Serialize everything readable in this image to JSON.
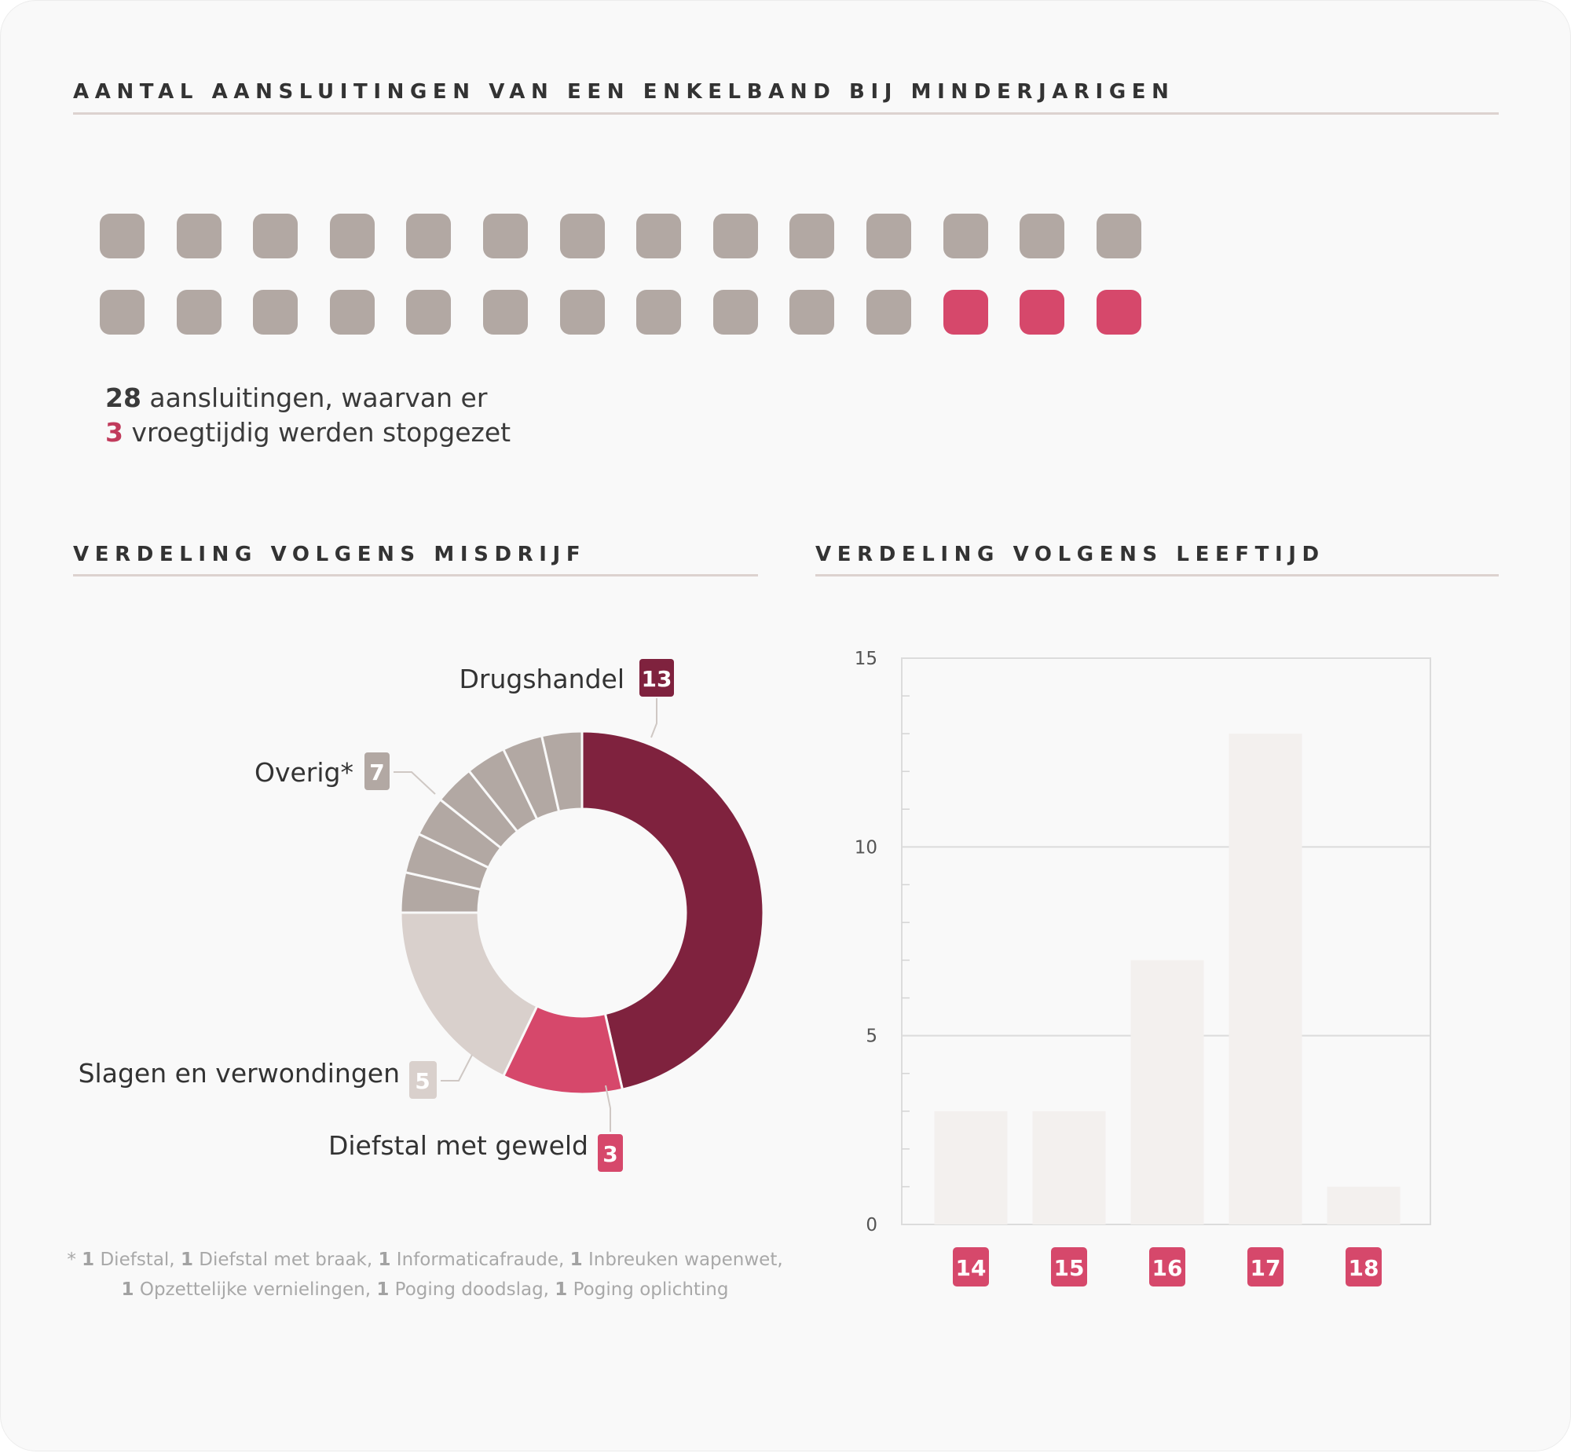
{
  "header": {
    "title": "AANTAL AANSLUITINGEN VAN EEN ENKELBAND BIJ MINDERJARIGEN"
  },
  "waffle": {
    "total": 28,
    "stopped": 3,
    "per_row": 14,
    "color_default": "#b2a8a3",
    "color_stopped": "#d6486b"
  },
  "summary": {
    "total_number": "28",
    "total_text": " aansluitingen, waarvan er",
    "stopped_number": "3",
    "stopped_text": " vroegtijdig werden stopgezet"
  },
  "sections": {
    "misdrijf_title": "VERDELING VOLGENS MISDRIJF",
    "leeftijd_title": "VERDELING VOLGENS LEEFTIJD"
  },
  "footnote": {
    "marker": "*",
    "items": [
      {
        "n": "1",
        "label": " Diefstal, "
      },
      {
        "n": "1",
        "label": " Diefstal met braak, "
      },
      {
        "n": "1",
        "label": " Informaticafraude, "
      },
      {
        "n": "1",
        "label": " Inbreuken wapenwet,"
      },
      {
        "n": "1",
        "label": " Opzettelijke vernielingen, "
      },
      {
        "n": "1",
        "label": " Poging doodslag, "
      },
      {
        "n": "1",
        "label": " Poging oplichting"
      }
    ]
  },
  "chart_data": [
    {
      "type": "pie",
      "title": "VERDELING VOLGENS MISDRIJF",
      "slices": [
        {
          "label": "Drugshandel",
          "value": 13,
          "color": "#7f223e"
        },
        {
          "label": "Diefstal met geweld",
          "value": 3,
          "color": "#d6486b"
        },
        {
          "label": "Slagen en verwondingen",
          "value": 5,
          "color": "#d9d0cc"
        },
        {
          "label": "Overig*",
          "value": 7,
          "color": "#b2a8a3",
          "segments": 7
        }
      ],
      "labels": {
        "drugshandel": {
          "text": "Drugshandel",
          "value": "13"
        },
        "overig": {
          "text": "Overig*",
          "value": "7"
        },
        "slagen": {
          "text": "Slagen en verwondingen",
          "value": "5"
        },
        "diefstal": {
          "text": "Diefstal met geweld",
          "value": "3"
        }
      }
    },
    {
      "type": "bar",
      "title": "VERDELING VOLGENS LEEFTIJD",
      "categories": [
        "14",
        "15",
        "16",
        "17",
        "18"
      ],
      "values": [
        3,
        3,
        7,
        13,
        1
      ],
      "ylim": [
        0,
        15
      ],
      "yticks": [
        "0",
        "5",
        "10",
        "15"
      ],
      "bar_color": "#f3f0ee",
      "tag_color": "#d6486b"
    }
  ]
}
